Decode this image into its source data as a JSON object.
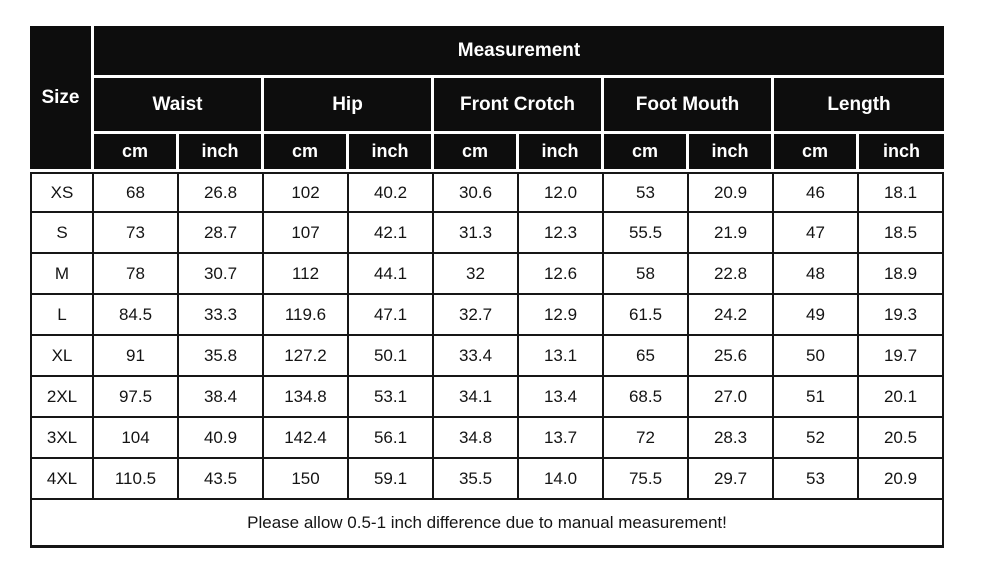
{
  "table": {
    "measurement_label": "Measurement",
    "size_label": "Size",
    "groups": [
      {
        "label": "Waist"
      },
      {
        "label": "Hip"
      },
      {
        "label": "Front Crotch"
      },
      {
        "label": "Foot Mouth"
      },
      {
        "label": "Length"
      }
    ],
    "unit_cm": "cm",
    "unit_inch": "inch",
    "rows": [
      {
        "size": "XS",
        "values": [
          "68",
          "26.8",
          "102",
          "40.2",
          "30.6",
          "12.0",
          "53",
          "20.9",
          "46",
          "18.1"
        ]
      },
      {
        "size": "S",
        "values": [
          "73",
          "28.7",
          "107",
          "42.1",
          "31.3",
          "12.3",
          "55.5",
          "21.9",
          "47",
          "18.5"
        ]
      },
      {
        "size": "M",
        "values": [
          "78",
          "30.7",
          "112",
          "44.1",
          "32",
          "12.6",
          "58",
          "22.8",
          "48",
          "18.9"
        ]
      },
      {
        "size": "L",
        "values": [
          "84.5",
          "33.3",
          "119.6",
          "47.1",
          "32.7",
          "12.9",
          "61.5",
          "24.2",
          "49",
          "19.3"
        ]
      },
      {
        "size": "XL",
        "values": [
          "91",
          "35.8",
          "127.2",
          "50.1",
          "33.4",
          "13.1",
          "65",
          "25.6",
          "50",
          "19.7"
        ]
      },
      {
        "size": "2XL",
        "values": [
          "97.5",
          "38.4",
          "134.8",
          "53.1",
          "34.1",
          "13.4",
          "68.5",
          "27.0",
          "51",
          "20.1"
        ]
      },
      {
        "size": "3XL",
        "values": [
          "104",
          "40.9",
          "142.4",
          "56.1",
          "34.8",
          "13.7",
          "72",
          "28.3",
          "52",
          "20.5"
        ]
      },
      {
        "size": "4XL",
        "values": [
          "110.5",
          "43.5",
          "150",
          "59.1",
          "35.5",
          "14.0",
          "75.5",
          "29.7",
          "53",
          "20.9"
        ]
      }
    ],
    "footnote": "Please allow 0.5-1 inch difference due to manual measurement!"
  },
  "colors": {
    "header_bg": "#0d0d0d",
    "header_text": "#ffffff",
    "grid_line": "#161616",
    "body_bg": "#ffffff",
    "body_text": "#141414"
  },
  "chart_data": {
    "type": "table",
    "title": "Measurement",
    "columns": [
      "Size",
      "Waist cm",
      "Waist inch",
      "Hip cm",
      "Hip inch",
      "Front Crotch cm",
      "Front Crotch inch",
      "Foot Mouth cm",
      "Foot Mouth inch",
      "Length cm",
      "Length inch"
    ],
    "rows": [
      [
        "XS",
        68,
        26.8,
        102,
        40.2,
        30.6,
        12.0,
        53,
        20.9,
        46,
        18.1
      ],
      [
        "S",
        73,
        28.7,
        107,
        42.1,
        31.3,
        12.3,
        55.5,
        21.9,
        47,
        18.5
      ],
      [
        "M",
        78,
        30.7,
        112,
        44.1,
        32,
        12.6,
        58,
        22.8,
        48,
        18.9
      ],
      [
        "L",
        84.5,
        33.3,
        119.6,
        47.1,
        32.7,
        12.9,
        61.5,
        24.2,
        49,
        19.3
      ],
      [
        "XL",
        91,
        35.8,
        127.2,
        50.1,
        33.4,
        13.1,
        65,
        25.6,
        50,
        19.7
      ],
      [
        "2XL",
        97.5,
        38.4,
        134.8,
        53.1,
        34.1,
        13.4,
        68.5,
        27.0,
        51,
        20.1
      ],
      [
        "3XL",
        104,
        40.9,
        142.4,
        56.1,
        34.8,
        13.7,
        72,
        28.3,
        52,
        20.5
      ],
      [
        "4XL",
        110.5,
        43.5,
        150,
        59.1,
        35.5,
        14.0,
        75.5,
        29.7,
        53,
        20.9
      ]
    ],
    "note": "Please allow 0.5-1 inch difference due to manual measurement!"
  }
}
